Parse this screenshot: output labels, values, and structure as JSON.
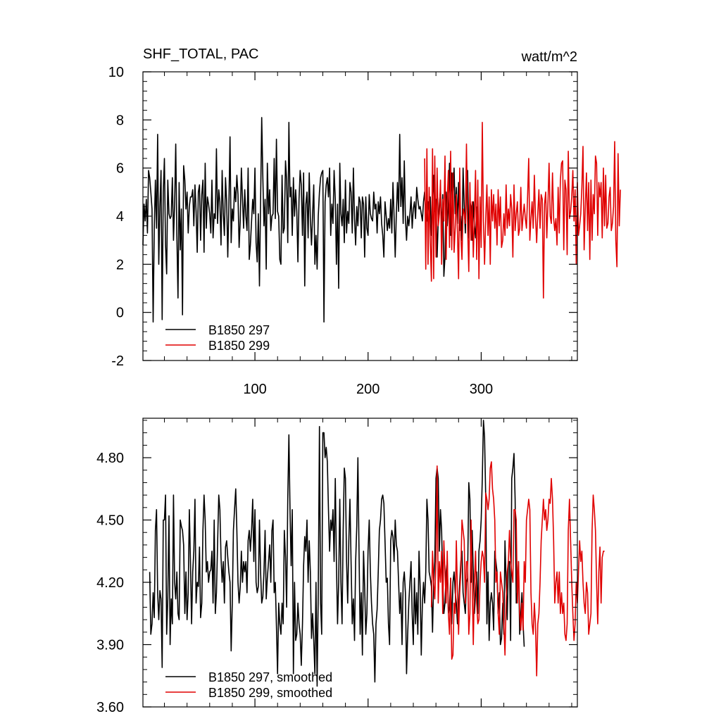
{
  "chart_data": [
    {
      "type": "line",
      "title": "SHF_TOTAL, PAC",
      "units": "watt/m^2",
      "xlim": [
        1,
        385
      ],
      "ylim": [
        -2,
        10
      ],
      "x_ticks": [
        100,
        200,
        300
      ],
      "y_ticks": [
        -2,
        0,
        2,
        4,
        6,
        8,
        10
      ],
      "y_tick_labels": [
        "-2",
        "0",
        "2",
        "4",
        "6",
        "8",
        "10"
      ],
      "legend_position": "bottom-left",
      "series": [
        {
          "name": "B1850 297",
          "color": "#000000",
          "x_start": 1,
          "values": [
            2.8,
            4.5,
            3.8,
            4.7,
            3.3,
            5.9,
            5.6,
            5.0,
            4.3,
            -0.4,
            3.5,
            5.5,
            3.5,
            7.4,
            2.0,
            4.4,
            5.9,
            -0.3,
            5.0,
            6.4,
            2.8,
            1.6,
            5.5,
            4.1,
            3.9,
            4.0,
            5.6,
            3.0,
            4.5,
            7.0,
            3.2,
            0.6,
            5.4,
            2.6,
            4.3,
            -0.1,
            6.1,
            5.5,
            4.3,
            5.0,
            3.3,
            4.4,
            4.8,
            4.8,
            5.1,
            3.6,
            5.3,
            4.2,
            2.5,
            5.0,
            5.3,
            3.0,
            4.9,
            5.5,
            2.5,
            6.2,
            3.5,
            4.8,
            4.5,
            4.1,
            3.3,
            5.5,
            3.1,
            4.1,
            3.9,
            6.8,
            3.7,
            5.1,
            4.6,
            2.8,
            5.9,
            4.1,
            3.2,
            5.6,
            4.6,
            2.3,
            4.5,
            7.3,
            2.9,
            4.3,
            3.8,
            5.2,
            4.6,
            5.7,
            4.9,
            2.7,
            3.8,
            6.0,
            4.7,
            3.5,
            5.1,
            4.0,
            3.4,
            6.0,
            2.2,
            2.8,
            3.8,
            4.7,
            4.1,
            6.0,
            2.9,
            2.1,
            4.1,
            1.1,
            4.6,
            8.1,
            5.6,
            3.6,
            4.7,
            1.8,
            6.2,
            4.1,
            5.1,
            3.4,
            4.0,
            4.1,
            6.4,
            3.9,
            7.2,
            4.2,
            4.0,
            2.2,
            2.0,
            5.7,
            3.3,
            3.5,
            6.3,
            5.5,
            2.9,
            7.9,
            4.8,
            5.2,
            3.2,
            5.6,
            4.0,
            5.1,
            4.2,
            2.1,
            4.7,
            5.9,
            5.3,
            3.2,
            5.8,
            1.1,
            4.5,
            5.0,
            3.1,
            5.8,
            3.9,
            2.8,
            4.1,
            5.3,
            2.0,
            3.2,
            1.8,
            4.0,
            5.0,
            5.6,
            5.8,
            5.9,
            -0.4,
            4.6,
            5.3,
            5.6,
            4.8,
            6.0,
            3.2,
            4.5,
            3.7,
            5.9,
            4.7,
            2.0,
            4.5,
            1.0,
            6.2,
            4.1,
            3.6,
            4.7,
            2.9,
            5.5,
            3.3,
            4.2,
            3.7,
            5.4,
            5.0,
            3.3,
            6.0,
            3.9,
            2.8,
            4.4,
            3.6,
            4.8,
            4.6,
            3.1,
            4.8,
            4.5,
            2.3,
            4.8,
            3.5,
            3.2,
            4.9,
            4.1,
            3.9,
            3.8,
            5.0,
            4.3,
            4.5,
            3.3,
            4.6,
            4.1,
            4.8,
            3.7,
            3.2,
            2.3,
            4.6,
            4.0,
            3.4,
            3.9,
            3.5,
            4.7,
            3.3,
            5.4,
            4.0,
            2.3,
            4.1,
            5.4,
            4.2,
            7.4,
            4.4,
            5.6,
            3.7,
            6.3,
            3.9,
            3.0,
            4.0,
            3.6,
            4.1,
            4.8,
            3.5,
            4.3,
            4.6,
            3.9,
            5.2,
            4.7,
            4.3,
            4.4,
            4.1,
            3.8,
            4.6,
            5.0,
            4.1,
            3.8,
            4.6,
            4.1,
            4.8,
            3.2,
            4.5,
            5.7,
            4.2,
            4.7,
            2.3,
            3.8,
            4.5,
            5.1,
            3.3,
            4.9,
            1.5,
            2.3,
            5.0,
            3.6,
            4.5,
            6.2,
            3.2,
            5.8,
            4.7,
            6.0,
            4.1,
            5.2,
            3.7,
            5.4,
            3.4,
            4.0,
            3.0,
            6.0,
            4.4,
            3.3,
            5.3,
            5.9,
            3.1,
            4.6,
            4.4,
            3.0,
            4.6,
            3.6,
            3.1,
            4.4
          ]
        },
        {
          "name": "B1850 299",
          "color": "#e00000",
          "x_start": 250,
          "values": [
            6.4,
            1.8,
            6.8,
            2.0,
            5.2,
            2.9,
            1.3,
            6.8,
            1.4,
            6.5,
            2.3,
            6.0,
            3.6,
            4.1,
            5.5,
            2.0,
            4.7,
            3.8,
            6.5,
            2.2,
            4.7,
            5.9,
            2.7,
            6.7,
            2.6,
            5.8,
            2.5,
            3.5,
            4.9,
            3.3,
            1.4,
            6.0,
            3.2,
            2.2,
            4.3,
            4.1,
            3.7,
            7.0,
            3.6,
            1.7,
            5.4,
            3.0,
            4.6,
            2.3,
            4.0,
            5.9,
            2.2,
            5.5,
            1.4,
            4.8,
            2.7,
            7.9,
            3.8,
            2.0,
            3.9,
            5.3,
            3.2,
            4.8,
            2.0,
            5.1,
            3.8,
            4.9,
            3.5,
            4.5,
            2.8,
            5.1,
            3.6,
            4.8,
            2.7,
            3.0,
            4.1,
            3.2,
            5.3,
            3.5,
            4.3,
            3.6,
            4.9,
            4.3,
            2.3,
            5.3,
            3.4,
            4.1,
            4.6,
            3.2,
            3.5,
            5.2,
            3.4,
            4.0,
            4.5,
            3.9,
            3.5,
            4.8,
            6.4,
            3.0,
            3.9,
            4.6,
            3.5,
            5.7,
            4.0,
            2.9,
            4.1,
            5.1,
            3.5,
            4.9,
            4.7,
            0.6,
            4.5,
            5.0,
            3.1,
            4.5,
            6.2,
            4.0,
            3.7,
            5.8,
            3.9,
            3.4,
            3.9,
            2.8,
            5.2,
            3.3,
            5.5,
            6.2,
            6.3,
            2.6,
            5.5,
            5.1,
            2.4,
            6.7,
            3.9,
            4.2,
            4.8,
            5.9,
            3.8,
            5.1,
            2.0,
            5.4,
            3.2,
            3.6,
            4.1,
            5.2,
            6.9,
            2.6,
            4.3,
            5.8,
            3.4,
            5.4,
            2.2,
            5.5,
            3.0,
            4.9,
            4.1,
            6.5,
            6.2,
            3.2,
            5.4,
            4.8,
            5.4,
            3.1,
            6.0,
            3.6,
            5.7,
            3.5,
            3.7,
            4.8,
            5.2,
            3.4,
            3.7,
            4.4,
            7.1,
            3.0,
            1.9,
            6.6,
            3.6,
            5.1
          ]
        }
      ]
    },
    {
      "type": "line",
      "xlim": [
        1,
        385
      ],
      "ylim": [
        3.6,
        4.99
      ],
      "x_ticks": [
        100,
        200,
        300
      ],
      "y_ticks": [
        3.6,
        3.9,
        4.2,
        4.5,
        4.8
      ],
      "y_tick_labels": [
        "3.60",
        "3.90",
        "4.20",
        "4.50",
        "4.80"
      ],
      "legend_position": "bottom-left",
      "series": [
        {
          "name": "B1850 297, smoothed",
          "color": "#000000",
          "x_start": 7,
          "values": [
            4.25,
            3.95,
            4.0,
            4.15,
            4.03,
            4.45,
            4.55,
            4.15,
            4.02,
            4.16,
            4.12,
            3.79,
            4.5,
            4.5,
            4.62,
            3.95,
            4.12,
            4.52,
            3.9,
            4.12,
            4.0,
            4.62,
            4.2,
            4.12,
            4.25,
            4.05,
            4.02,
            4.5,
            4.47,
            4.45,
            4.38,
            4.05,
            4.25,
            4.02,
            4.15,
            4.55,
            4.3,
            4.0,
            4.25,
            4.35,
            4.6,
            4.1,
            4.2,
            4.18,
            4.37,
            4.03,
            4.1,
            4.45,
            4.62,
            4.5,
            4.25,
            4.3,
            4.2,
            4.25,
            4.26,
            4.35,
            4.1,
            4.5,
            4.05,
            4.15,
            4.38,
            4.62,
            4.55,
            4.32,
            4.2,
            4.3,
            4.1,
            4.37,
            4.4,
            4.32,
            4.25,
            4.2,
            3.87,
            4.1,
            4.45,
            4.55,
            4.65,
            4.45,
            4.2,
            4.1,
            4.18,
            4.35,
            4.2,
            4.3,
            4.25,
            4.3,
            4.15,
            4.4,
            4.45,
            4.35,
            4.45,
            4.6,
            4.3,
            4.55,
            4.2,
            4.15,
            4.18,
            4.5,
            4.25,
            4.1,
            4.13,
            4.25,
            4.45,
            4.12,
            4.22,
            4.3,
            4.38,
            4.2,
            4.45,
            4.5,
            4.15,
            4.2,
            3.99,
            3.76,
            4.1,
            4.0,
            3.95,
            4.1,
            4.0,
            4.45,
            4.32,
            4.08,
            4.6,
            4.91,
            4.55,
            4.28,
            4.55,
            3.76,
            4.2,
            3.92,
            3.95,
            4.1,
            4.0,
            3.95,
            3.8,
            4.0,
            4.28,
            4.42,
            4.35,
            4.5,
            4.2,
            4.4,
            4.25,
            3.93,
            4.05,
            3.92,
            3.76,
            4.2,
            3.7,
            4.15,
            4.95,
            4.1,
            3.95,
            4.92,
            4.92,
            4.8,
            4.85,
            4.78,
            4.55,
            4.35,
            4.5,
            4.45,
            4.55,
            4.3,
            4.7,
            4.3,
            4.0,
            4.2,
            4.6,
            4.2,
            4.0,
            4.45,
            4.75,
            4.7,
            4.3,
            4.1,
            4.4,
            4.6,
            4.3,
            4.0,
            4.12,
            3.92,
            4.3,
            4.47,
            4.8,
            4.35,
            3.95,
            4.15,
            3.85,
            4.35,
            4.18,
            3.95,
            4.05,
            4.35,
            4.5,
            4.25,
            4.1,
            4.0,
            3.95,
            3.72,
            4.0,
            4.07,
            4.25,
            4.45,
            4.5,
            4.6,
            4.62,
            4.58,
            4.4,
            4.2,
            4.22,
            4.0,
            3.9,
            4.4,
            4.45,
            4.42,
            4.3,
            4.5,
            4.38,
            4.35,
            4.2,
            4.05,
            4.15,
            3.9,
            4.2,
            4.25,
            4.15,
            3.76,
            3.95,
            4.1,
            4.2,
            4.3,
            4.05,
            3.9,
            4.22,
            4.0,
            4.15,
            3.95,
            4.35,
            4.18,
            3.85,
            4.1,
            4.2,
            4.1,
            4.25,
            4.6,
            4.5,
            4.25,
            4.22,
            4.18,
            3.96,
            4.2,
            4.3,
            4.7,
            4.75,
            4.7,
            4.35,
            4.55,
            4.45,
            4.2,
            4.05,
            4.1,
            4.25,
            4.3,
            4.05,
            4.08,
            4.22,
            4.0,
            4.2,
            4.25,
            4.15,
            4.1,
            4.0,
            4.08,
            4.2,
            4.3,
            4.35,
            4.15,
            4.1,
            4.05,
            4.2,
            4.22,
            4.68,
            4.6,
            4.2,
            4.45,
            4.25,
            4.05,
            4.15,
            4.25,
            4.05,
            4.35,
            4.4,
            4.5,
            4.7,
            4.98,
            4.9,
            4.6,
            4.0,
            4.25,
            3.92,
            4.1,
            4.15,
            4.1,
            3.97,
            4.35,
            4.3,
            4.25,
            4.05,
            4.15,
            3.9,
            3.93,
            4.1,
            3.95,
            4.4,
            4.2,
            4.02,
            4.3,
            4.3,
            3.92,
            4.7,
            4.75,
            4.82,
            4.6,
            4.1,
            4.15,
            4.3,
            3.95,
            4.05,
            4.15,
            4.0,
            3.89
          ]
        },
        {
          "name": "B1850 299, smoothed",
          "color": "#e00000",
          "x_start": 256,
          "values": [
            4.08,
            4.35,
            4.2,
            4.12,
            4.3,
            4.76,
            4.1,
            4.3,
            4.2,
            4.35,
            4.05,
            4.4,
            4.25,
            4.1,
            4.35,
            4.05,
            3.95,
            4.22,
            3.83,
            3.85,
            4.1,
            4.05,
            4.4,
            4.15,
            3.95,
            4.15,
            4.25,
            4.5,
            4.45,
            4.4,
            4.1,
            4.3,
            4.3,
            3.95,
            4.05,
            4.5,
            4.2,
            3.9,
            4.2,
            4.35,
            4.1,
            4.0,
            4.02,
            4.2,
            4.3,
            4.35,
            4.32,
            4.2,
            4.63,
            4.6,
            4.55,
            4.6,
            4.75,
            4.78,
            4.65,
            4.6,
            4.5,
            4.2,
            4.25,
            4.05,
            3.95,
            4.25,
            4.2,
            4.15,
            4.0,
            3.85,
            4.1,
            4.25,
            4.3,
            4.45,
            4.3,
            4.25,
            4.2,
            4.55,
            4.55,
            4.5,
            4.1,
            4.3,
            4.05,
            3.97,
            4.1,
            3.97,
            4.3,
            4.2,
            4.5,
            4.55,
            4.6,
            4.55,
            4.15,
            4.0,
            3.95,
            4.1,
            4.0,
            3.75,
            4.0,
            4.05,
            4.2,
            4.4,
            4.5,
            4.6,
            4.5,
            4.55,
            4.45,
            4.5,
            4.6,
            4.58,
            4.7,
            4.6,
            4.4,
            4.1,
            4.2,
            4.25,
            4.1,
            4.25,
            4.05,
            4.15,
            4.05,
            4.1,
            3.95,
            3.92,
            4.0,
            4.45,
            4.6,
            4.4,
            4.2,
            4.05,
            3.92,
            4.0,
            4.2,
            4.1,
            4.25,
            4.4,
            4.3,
            4.35,
            4.2,
            4.1,
            4.05,
            4.2,
            4.15,
            3.95,
            4.0,
            4.05,
            4.45,
            4.62,
            4.55,
            4.45,
            4.2,
            4.0,
            4.25,
            4.37,
            4.1,
            4.32,
            4.35,
            4.35
          ]
        }
      ]
    }
  ]
}
